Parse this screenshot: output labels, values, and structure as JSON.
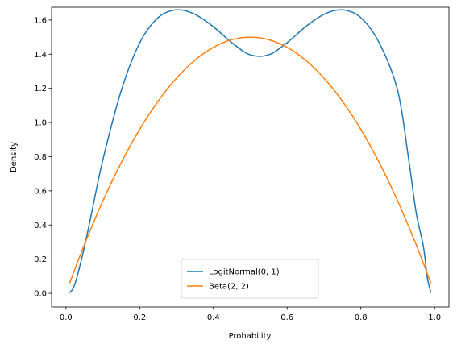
{
  "chart_data": {
    "type": "line",
    "title": "",
    "xlabel": "Probability",
    "ylabel": "Density",
    "xlim": [
      -0.039,
      1.039
    ],
    "ylim": [
      -0.08,
      1.675
    ],
    "xticks": [
      0.0,
      0.2,
      0.4,
      0.6,
      0.8,
      1.0
    ],
    "xtick_labels": [
      "0.0",
      "0.2",
      "0.4",
      "0.6",
      "0.8",
      "1.0"
    ],
    "yticks": [
      0.0,
      0.2,
      0.4,
      0.6,
      0.8,
      1.0,
      1.2,
      1.4,
      1.6
    ],
    "ytick_labels": [
      "0.0",
      "0.2",
      "0.4",
      "0.6",
      "0.8",
      "1.0",
      "1.2",
      "1.4",
      "1.6"
    ],
    "grid": false,
    "legend_position": "bottom-center",
    "series": [
      {
        "name": "LogitNormal(0, 1)",
        "color": "#1f77b4",
        "x": [
          0.01,
          0.02,
          0.03,
          0.05,
          0.07,
          0.1,
          0.15,
          0.2,
          0.25,
          0.3,
          0.35,
          0.4,
          0.45,
          0.5,
          0.55,
          0.6,
          0.65,
          0.7,
          0.75,
          0.8,
          0.85,
          0.9,
          0.93,
          0.95,
          0.97,
          0.98,
          0.99
        ],
        "y": [
          0.0031,
          0.0314,
          0.0958,
          0.2706,
          0.4741,
          0.7799,
          1.1867,
          1.4658,
          1.6141,
          1.6596,
          1.6335,
          1.5607,
          1.4675,
          1.3963,
          1.3963,
          1.4675,
          1.5607,
          1.6335,
          1.6596,
          1.6141,
          1.4658,
          1.1867,
          0.7799,
          0.4741,
          0.2706,
          0.0958,
          0.0031
        ]
      },
      {
        "name": "Beta(2, 2)",
        "color": "#ff7f0e",
        "x": [
          0.01,
          0.05,
          0.1,
          0.15,
          0.2,
          0.25,
          0.3,
          0.35,
          0.4,
          0.45,
          0.5,
          0.55,
          0.6,
          0.65,
          0.7,
          0.75,
          0.8,
          0.85,
          0.9,
          0.95,
          0.99
        ],
        "y": [
          0.0594,
          0.285,
          0.54,
          0.765,
          0.96,
          1.125,
          1.26,
          1.365,
          1.44,
          1.485,
          1.5,
          1.485,
          1.44,
          1.365,
          1.26,
          1.125,
          0.96,
          0.765,
          0.54,
          0.285,
          0.0594
        ]
      }
    ]
  }
}
